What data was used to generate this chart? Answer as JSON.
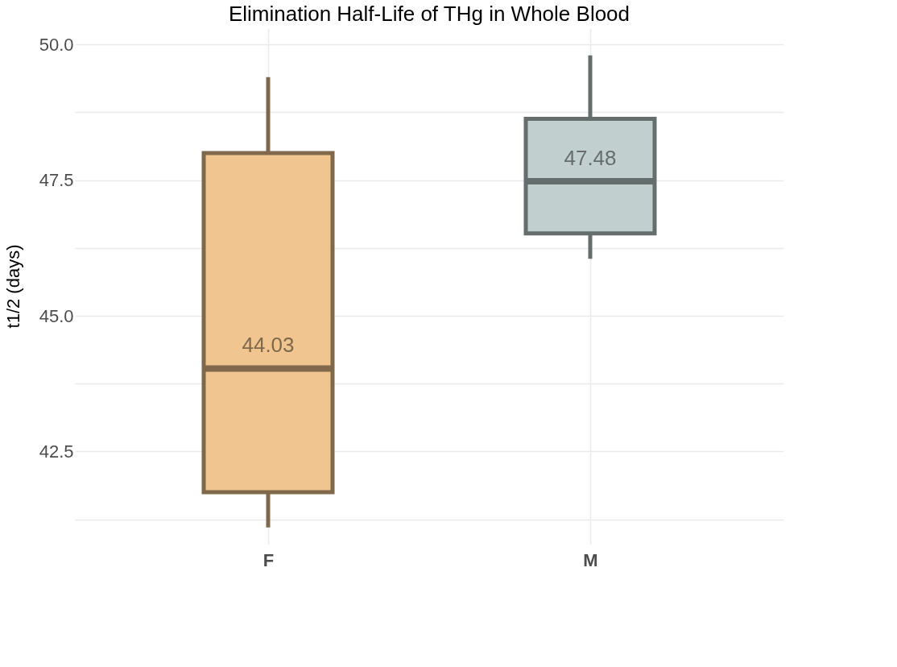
{
  "chart_data": {
    "type": "box",
    "title": "Elimination Half-Life of THg in Whole Blood",
    "ylabel": "t1/2 (days)",
    "categories": [
      "F",
      "M"
    ],
    "boxes": [
      {
        "low": 41.1,
        "q1": 41.75,
        "median": 44.03,
        "q3": 48.0,
        "high": 49.4
      },
      {
        "low": 46.05,
        "q1": 46.52,
        "median": 47.48,
        "q3": 48.63,
        "high": 49.8
      }
    ],
    "colors": [
      "#f0c58f",
      "#c2cfcf"
    ],
    "value_labels": [
      "44.03",
      "47.48"
    ],
    "ylim": [
      40.8,
      50.3
    ],
    "yticks": [
      {
        "value": 41.25,
        "label": null
      },
      {
        "value": 42.5,
        "label": "42.5"
      },
      {
        "value": 43.75,
        "label": null
      },
      {
        "value": 45,
        "label": "45.0"
      },
      {
        "value": 46.25,
        "label": null
      },
      {
        "value": 47.5,
        "label": "47.5"
      },
      {
        "value": 48.75,
        "label": null
      },
      {
        "value": 50,
        "label": "50.0"
      }
    ],
    "grid": true
  }
}
